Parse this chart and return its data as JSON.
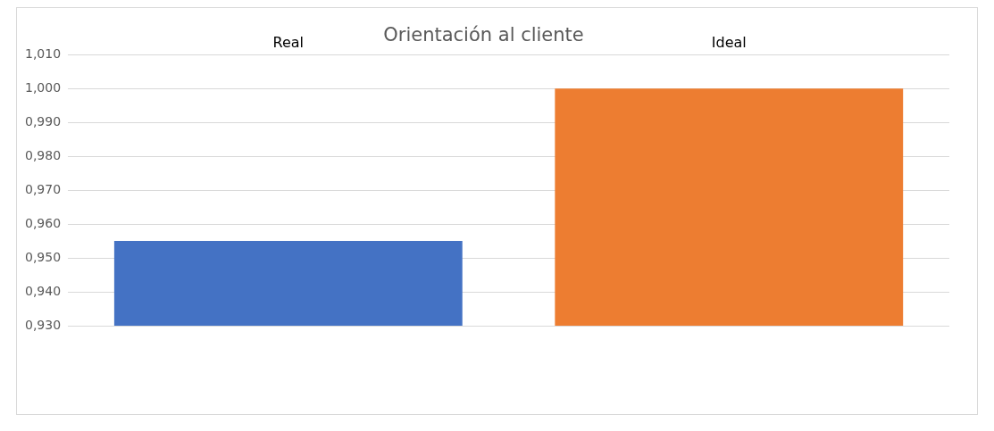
{
  "chart_data": {
    "type": "bar",
    "title": "Orientación al cliente",
    "categories": [
      "Real",
      "Ideal"
    ],
    "values": [
      0.955,
      1.0
    ],
    "colors": [
      "#4472c4",
      "#ed7d31"
    ],
    "ylim": [
      0.93,
      1.01
    ],
    "yticks": [
      {
        "value": 0.93,
        "label": "0,930"
      },
      {
        "value": 0.94,
        "label": "0,940"
      },
      {
        "value": 0.95,
        "label": "0,950"
      },
      {
        "value": 0.96,
        "label": "0,960"
      },
      {
        "value": 0.97,
        "label": "0,970"
      },
      {
        "value": 0.98,
        "label": "0,980"
      },
      {
        "value": 0.99,
        "label": "0,990"
      },
      {
        "value": 1.0,
        "label": "1,000"
      },
      {
        "value": 1.01,
        "label": "1,010"
      }
    ],
    "grid": "y",
    "legend": false
  }
}
